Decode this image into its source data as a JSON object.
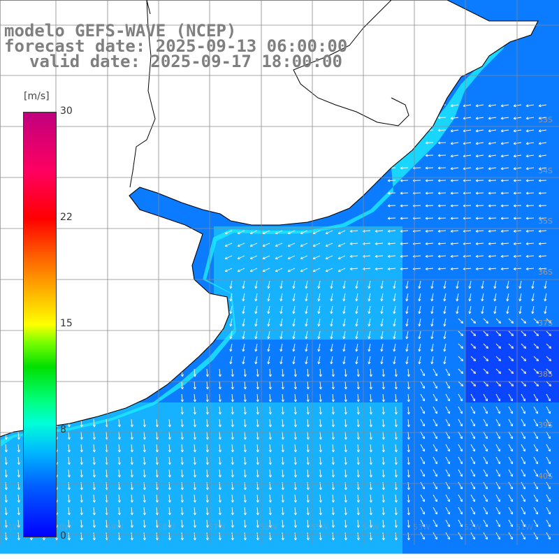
{
  "header": {
    "title": "modelo GEFS-WAVE (NCEP)",
    "forecast_date": "forecast date: 2025-09-13 06:00:00",
    "valid_date": "valid date: 2025-09-17 18:00:00"
  },
  "colorbar": {
    "unit": "[m/s]",
    "ticks": [
      "30",
      "22",
      "15",
      "8",
      "0"
    ],
    "range": [
      0,
      30
    ]
  },
  "latitude_labels": [
    "33S",
    "34S",
    "35S",
    "36S",
    "37S",
    "38S",
    "39S",
    "40S"
  ],
  "bottom_labels": [
    "61W",
    "60W",
    "59W",
    "58W",
    "57W",
    "56W",
    "55W",
    "54W",
    "53W",
    "52W",
    "51W"
  ],
  "colors": {
    "ocean_deep": "#0a46ff",
    "ocean_mid": "#0b7bff",
    "ocean_light": "#16b2ff",
    "coast_cyan": "#1ce6ff",
    "arrow": "#ffffff",
    "land": "#ffffff",
    "coastline": "#000000",
    "grid": "#8a8a8a",
    "header_text": "#7f7f7f"
  }
}
